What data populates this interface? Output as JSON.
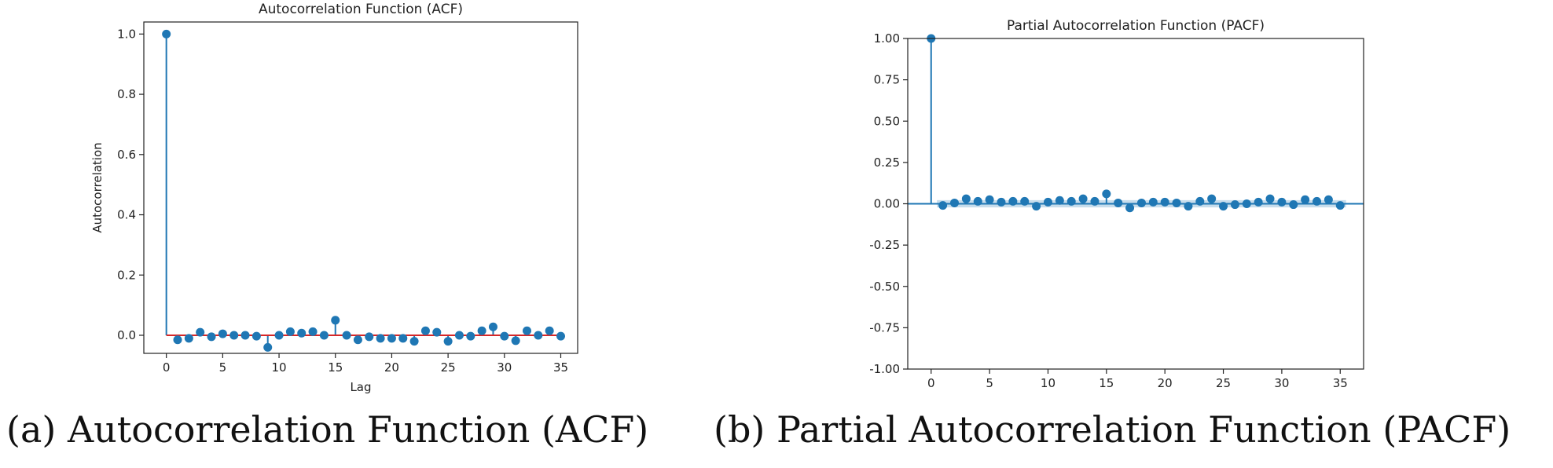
{
  "captions": {
    "a": "(a) Autocorrelation Function (ACF)",
    "b": "(b) Partial Autocorrelation Function (PACF)"
  },
  "chart_data": [
    {
      "type": "stem",
      "title": "Autocorrelation Function (ACF)",
      "xlabel": "Lag",
      "ylabel": "Autocorrelation",
      "xlim": [
        -2,
        36.5
      ],
      "ylim": [
        -0.06,
        1.04
      ],
      "xticks": [
        0,
        5,
        10,
        15,
        20,
        25,
        30,
        35
      ],
      "yticks": [
        0.0,
        0.2,
        0.4,
        0.6,
        0.8,
        1.0
      ],
      "ytick_labels": [
        "0.0",
        "0.2",
        "0.4",
        "0.6",
        "0.8",
        "1.0"
      ],
      "baseline": 0,
      "grid": false,
      "colors": {
        "stem": "#1f77b4",
        "baseline": "#d62728"
      },
      "x": [
        0,
        1,
        2,
        3,
        4,
        5,
        6,
        7,
        8,
        9,
        10,
        11,
        12,
        13,
        14,
        15,
        16,
        17,
        18,
        19,
        20,
        21,
        22,
        23,
        24,
        25,
        26,
        27,
        28,
        29,
        30,
        31,
        32,
        33,
        34,
        35
      ],
      "values": [
        1.0,
        -0.015,
        -0.01,
        0.01,
        -0.005,
        0.005,
        0.0,
        0.0,
        -0.003,
        -0.04,
        0.0,
        0.012,
        0.007,
        0.012,
        0.0,
        0.05,
        0.0,
        -0.015,
        -0.005,
        -0.01,
        -0.01,
        -0.01,
        -0.02,
        0.015,
        0.01,
        -0.02,
        0.0,
        -0.003,
        0.015,
        0.028,
        -0.003,
        -0.018,
        0.015,
        0.0,
        0.015,
        -0.003
      ]
    },
    {
      "type": "stem",
      "title": "Partial Autocorrelation Function (PACF)",
      "xlabel": "",
      "ylabel": "",
      "xlim": [
        -2,
        37
      ],
      "ylim": [
        -1.0,
        1.0
      ],
      "xticks": [
        0,
        5,
        10,
        15,
        20,
        25,
        30,
        35
      ],
      "yticks": [
        -1.0,
        -0.75,
        -0.5,
        -0.25,
        0.0,
        0.25,
        0.5,
        0.75,
        1.0
      ],
      "ytick_labels": [
        "-1.00",
        "-0.75",
        "-0.50",
        "-0.25",
        "0.00",
        "0.25",
        "0.50",
        "0.75",
        "1.00"
      ],
      "baseline": 0,
      "grid": false,
      "confidence_band": [
        -0.022,
        0.022
      ],
      "colors": {
        "stem": "#1f77b4",
        "baseline": "#1f77b4",
        "band": "#1f77b4"
      },
      "x": [
        0,
        1,
        2,
        3,
        4,
        5,
        6,
        7,
        8,
        9,
        10,
        11,
        12,
        13,
        14,
        15,
        16,
        17,
        18,
        19,
        20,
        21,
        22,
        23,
        24,
        25,
        26,
        27,
        28,
        29,
        30,
        31,
        32,
        33,
        34,
        35
      ],
      "values": [
        1.0,
        -0.01,
        0.005,
        0.03,
        0.015,
        0.025,
        0.01,
        0.015,
        0.015,
        -0.015,
        0.01,
        0.02,
        0.015,
        0.03,
        0.015,
        0.06,
        0.005,
        -0.025,
        0.005,
        0.01,
        0.01,
        0.005,
        -0.015,
        0.015,
        0.03,
        -0.015,
        -0.005,
        0.0,
        0.01,
        0.03,
        0.01,
        -0.005,
        0.025,
        0.015,
        0.025,
        -0.01
      ]
    }
  ]
}
